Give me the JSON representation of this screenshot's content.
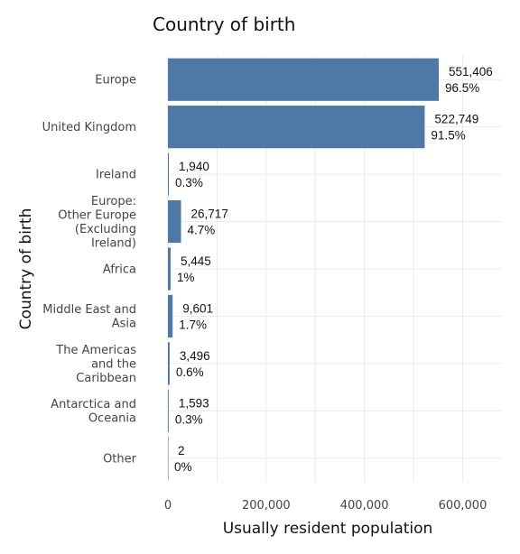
{
  "chart_data": {
    "type": "bar",
    "orientation": "horizontal",
    "title": "Country of birth",
    "xlabel": "Usually resident population",
    "ylabel": "Country of birth",
    "categories": [
      "Europe",
      "United Kingdom",
      "Ireland",
      "Europe: Other Europe (Excluding Ireland)",
      "Africa",
      "Middle East and Asia",
      "The Americas and the Caribbean",
      "Antarctica and Oceania",
      "Other"
    ],
    "category_lines": [
      [
        "Europe"
      ],
      [
        "United Kingdom"
      ],
      [
        "Ireland"
      ],
      [
        "Europe:",
        "Other Europe",
        "(Excluding",
        "Ireland)"
      ],
      [
        "Africa"
      ],
      [
        "Middle East and",
        "Asia"
      ],
      [
        "The Americas",
        "and the",
        "Caribbean"
      ],
      [
        "Antarctica and",
        "Oceania"
      ],
      [
        "Other"
      ]
    ],
    "values": [
      551406,
      522749,
      1940,
      26717,
      5445,
      9601,
      3496,
      1593,
      2
    ],
    "value_labels": [
      "551,406",
      "522,749",
      "1,940",
      "26,717",
      "5,445",
      "9,601",
      "3,496",
      "1,593",
      "2"
    ],
    "percent_labels": [
      "96.5%",
      "91.5%",
      "0.3%",
      "4.7%",
      "1%",
      "1.7%",
      "0.6%",
      "0.3%",
      "0%"
    ],
    "xlim": [
      0,
      680000
    ],
    "xticks": [
      0,
      200000,
      400000,
      600000
    ],
    "xtick_labels": [
      "0",
      "200,000",
      "400,000",
      "600,000"
    ],
    "bar_color": "#4e79a7",
    "grid": true
  }
}
